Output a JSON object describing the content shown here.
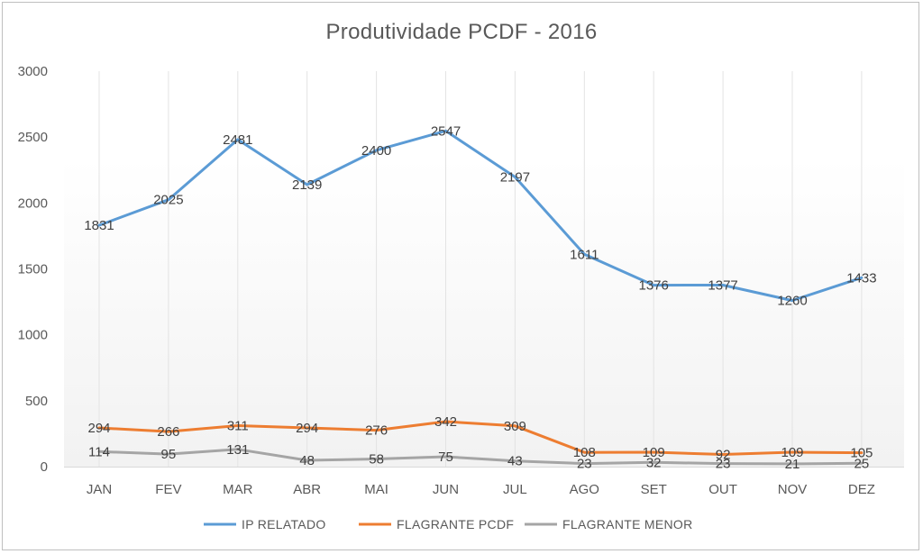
{
  "chart_data": {
    "type": "line",
    "title": "Produtividade  PCDF - 2016",
    "categories": [
      "JAN",
      "FEV",
      "MAR",
      "ABR",
      "MAI",
      "JUN",
      "JUL",
      "AGO",
      "SET",
      "OUT",
      "NOV",
      "DEZ"
    ],
    "ylim": [
      0,
      3000
    ],
    "yticks": [
      0,
      500,
      1000,
      1500,
      2000,
      2500,
      3000
    ],
    "grid": "vertical",
    "legend_position": "bottom",
    "series": [
      {
        "name": "IP RELATADO",
        "color": "#5b9bd5",
        "values": [
          1831,
          2025,
          2481,
          2139,
          2400,
          2547,
          2197,
          1611,
          1376,
          1377,
          1260,
          1433
        ]
      },
      {
        "name": "FLAGRANTE PCDF",
        "color": "#ed7d31",
        "values": [
          294,
          266,
          311,
          294,
          276,
          342,
          309,
          108,
          109,
          92,
          109,
          105
        ]
      },
      {
        "name": "FLAGRANTE MENOR",
        "color": "#a5a5a5",
        "values": [
          114,
          95,
          131,
          48,
          58,
          75,
          43,
          23,
          32,
          23,
          21,
          25
        ]
      }
    ]
  }
}
